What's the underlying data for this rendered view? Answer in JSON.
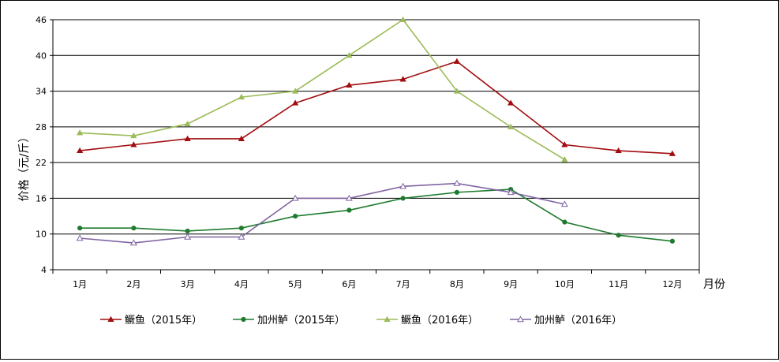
{
  "chart_data": {
    "type": "line",
    "title": "",
    "ylabel": "价格（元/斤）",
    "xlabel": "月份",
    "ylim": [
      4,
      46
    ],
    "yticks": [
      4,
      10,
      16,
      22,
      28,
      34,
      40,
      46
    ],
    "grid": true,
    "legend_position": "bottom",
    "categories": [
      "1月",
      "2月",
      "3月",
      "4月",
      "5月",
      "6月",
      "7月",
      "8月",
      "9月",
      "10月",
      "11月",
      "12月"
    ],
    "series": [
      {
        "name": "鳜鱼（2015年）",
        "color": "#a10d10",
        "marker": "triangle-filled",
        "values": [
          24.0,
          25.0,
          26.0,
          26.0,
          32.0,
          35.0,
          36.0,
          39.0,
          32.0,
          25.0,
          24.0,
          23.5
        ]
      },
      {
        "name": "加州鲈（2015年）",
        "color": "#1e7b2e",
        "marker": "circle-filled",
        "values": [
          11.0,
          11.0,
          10.5,
          11.0,
          13.0,
          14.0,
          16.0,
          17.0,
          17.5,
          12.0,
          9.8,
          8.8
        ]
      },
      {
        "name": "鳜鱼（2016年）",
        "color": "#9bbb59",
        "marker": "triangle-filled",
        "values": [
          27.0,
          26.5,
          28.5,
          33.0,
          34.0,
          40.0,
          46.0,
          34.0,
          28.0,
          22.5,
          null,
          null
        ]
      },
      {
        "name": "加州鲈（2016年）",
        "color": "#8064a2",
        "marker": "triangle-open",
        "values": [
          9.3,
          8.5,
          9.5,
          9.5,
          16.0,
          16.0,
          18.0,
          18.5,
          17.0,
          15.0,
          null,
          null
        ]
      }
    ]
  }
}
